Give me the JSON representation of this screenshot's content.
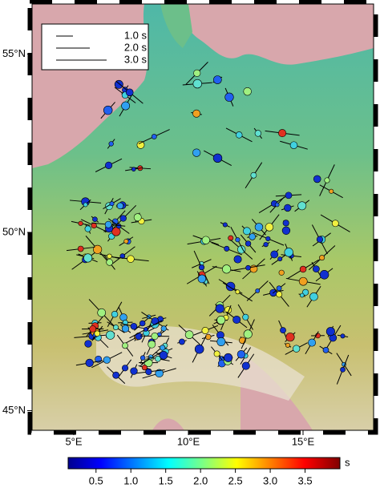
{
  "map": {
    "legend": {
      "entries": [
        {
          "value": 1.0,
          "label": "1.0 s"
        },
        {
          "value": 2.0,
          "label": "2.0 s"
        },
        {
          "value": 3.0,
          "label": "3.0 s"
        }
      ]
    },
    "lat_ticks": [
      {
        "value": 55,
        "label": "55°N"
      },
      {
        "value": 50,
        "label": "50°N"
      },
      {
        "value": 45,
        "label": "45°N"
      }
    ],
    "lon_ticks": [
      {
        "value": 5,
        "label": "5°E"
      },
      {
        "value": 10,
        "label": "10°E"
      },
      {
        "value": 15,
        "label": "15°E"
      }
    ],
    "colorbar": {
      "range": [
        0.1,
        4.0
      ],
      "unit": "s",
      "ticks": [
        0.5,
        {
          "value": 1,
          "label": "1.0"
        },
        1.5,
        {
          "value": 2,
          "label": "2.0"
        },
        2.5,
        {
          "value": 3,
          "label": "3.0"
        },
        3.5
      ]
    }
  }
}
